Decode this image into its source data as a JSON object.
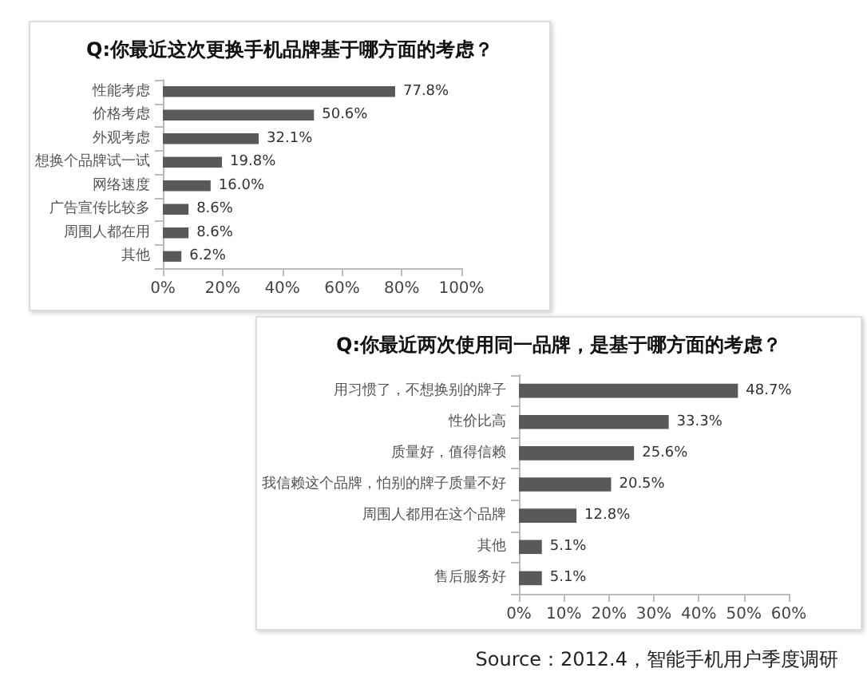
{
  "chart_data": [
    {
      "type": "bar",
      "orientation": "horizontal",
      "title": "Q:你最近这次更换手机品牌基于哪方面的考虑？",
      "categories": [
        "性能考虑",
        "价格考虑",
        "外观考虑",
        "想换个品牌试一试",
        "网络速度",
        "广告宣传比较多",
        "周围人都在用",
        "其他"
      ],
      "values": [
        77.8,
        50.6,
        32.1,
        19.8,
        16.0,
        8.6,
        8.6,
        6.2
      ],
      "value_labels": [
        "77.8%",
        "50.6%",
        "32.1%",
        "19.8%",
        "16.0%",
        "8.6%",
        "8.6%",
        "6.2%"
      ],
      "color": "#595959",
      "xlim": [
        0,
        100
      ],
      "xticks": [
        {
          "value": 0,
          "label": "0%"
        },
        {
          "value": 20,
          "label": "20%"
        },
        {
          "value": 40,
          "label": "40%"
        },
        {
          "value": 60,
          "label": "60%"
        },
        {
          "value": 80,
          "label": "80%"
        },
        {
          "value": 100,
          "label": "100%"
        }
      ]
    },
    {
      "type": "bar",
      "orientation": "horizontal",
      "title": "Q:你最近两次使用同一品牌，是基于哪方面的考虑？",
      "categories": [
        "用习惯了，不想换别的牌子",
        "性价比高",
        "质量好，值得信赖",
        "我信赖这个品牌，怕别的牌子质量不好",
        "周围人都用在这个品牌",
        "其他",
        "售后服务好"
      ],
      "values": [
        48.7,
        33.3,
        25.6,
        20.5,
        12.8,
        5.1,
        5.1
      ],
      "value_labels": [
        "48.7%",
        "33.3%",
        "25.6%",
        "20.5%",
        "12.8%",
        "5.1%",
        "5.1%"
      ],
      "color": "#595959",
      "xlim": [
        0,
        60
      ],
      "xticks": [
        {
          "value": 0,
          "label": "0%"
        },
        {
          "value": 10,
          "label": "10%"
        },
        {
          "value": 20,
          "label": "20%"
        },
        {
          "value": 30,
          "label": "30%"
        },
        {
          "value": 40,
          "label": "40%"
        },
        {
          "value": 50,
          "label": "50%"
        },
        {
          "value": 60,
          "label": "60%"
        }
      ],
      "annotations": [
        "Source：2012.4，智能手机用户季度调研"
      ]
    }
  ]
}
